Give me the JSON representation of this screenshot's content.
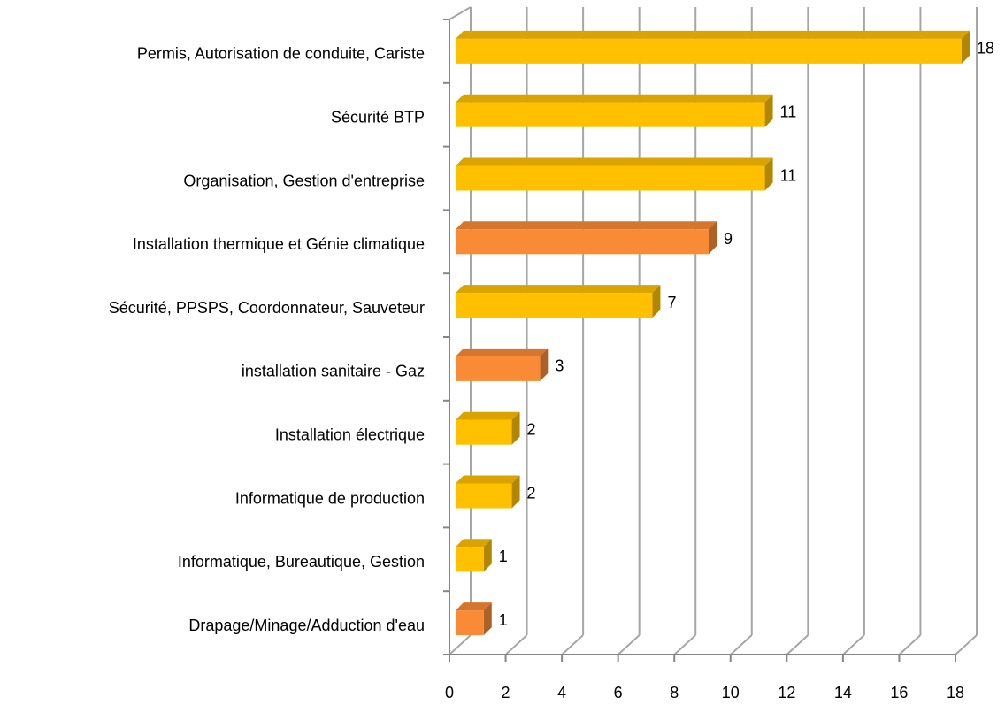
{
  "chart_data": {
    "type": "bar3d_horizontal",
    "categories": [
      "Permis, Autorisation de conduite, Cariste",
      "Sécurité BTP",
      "Organisation, Gestion d'entreprise",
      "Installation thermique et Génie climatique",
      "Sécurité, PPSPS, Coordonnateur, Sauveteur",
      "installation sanitaire - Gaz",
      "Installation électrique",
      "Informatique de production",
      "Informatique, Bureautique, Gestion",
      "Drapage/Minage/Adduction d'eau"
    ],
    "values": [
      18,
      11,
      11,
      9,
      7,
      3,
      2,
      2,
      1,
      1
    ],
    "colors": [
      "#ffc000",
      "#ffc000",
      "#ffc000",
      "#f98b36",
      "#ffc000",
      "#f98b36",
      "#ffc000",
      "#ffc000",
      "#ffc000",
      "#f98b36"
    ],
    "xlim": [
      0,
      18
    ],
    "xticks": [
      0,
      2,
      4,
      6,
      8,
      10,
      12,
      14,
      16,
      18
    ],
    "grid": true
  }
}
